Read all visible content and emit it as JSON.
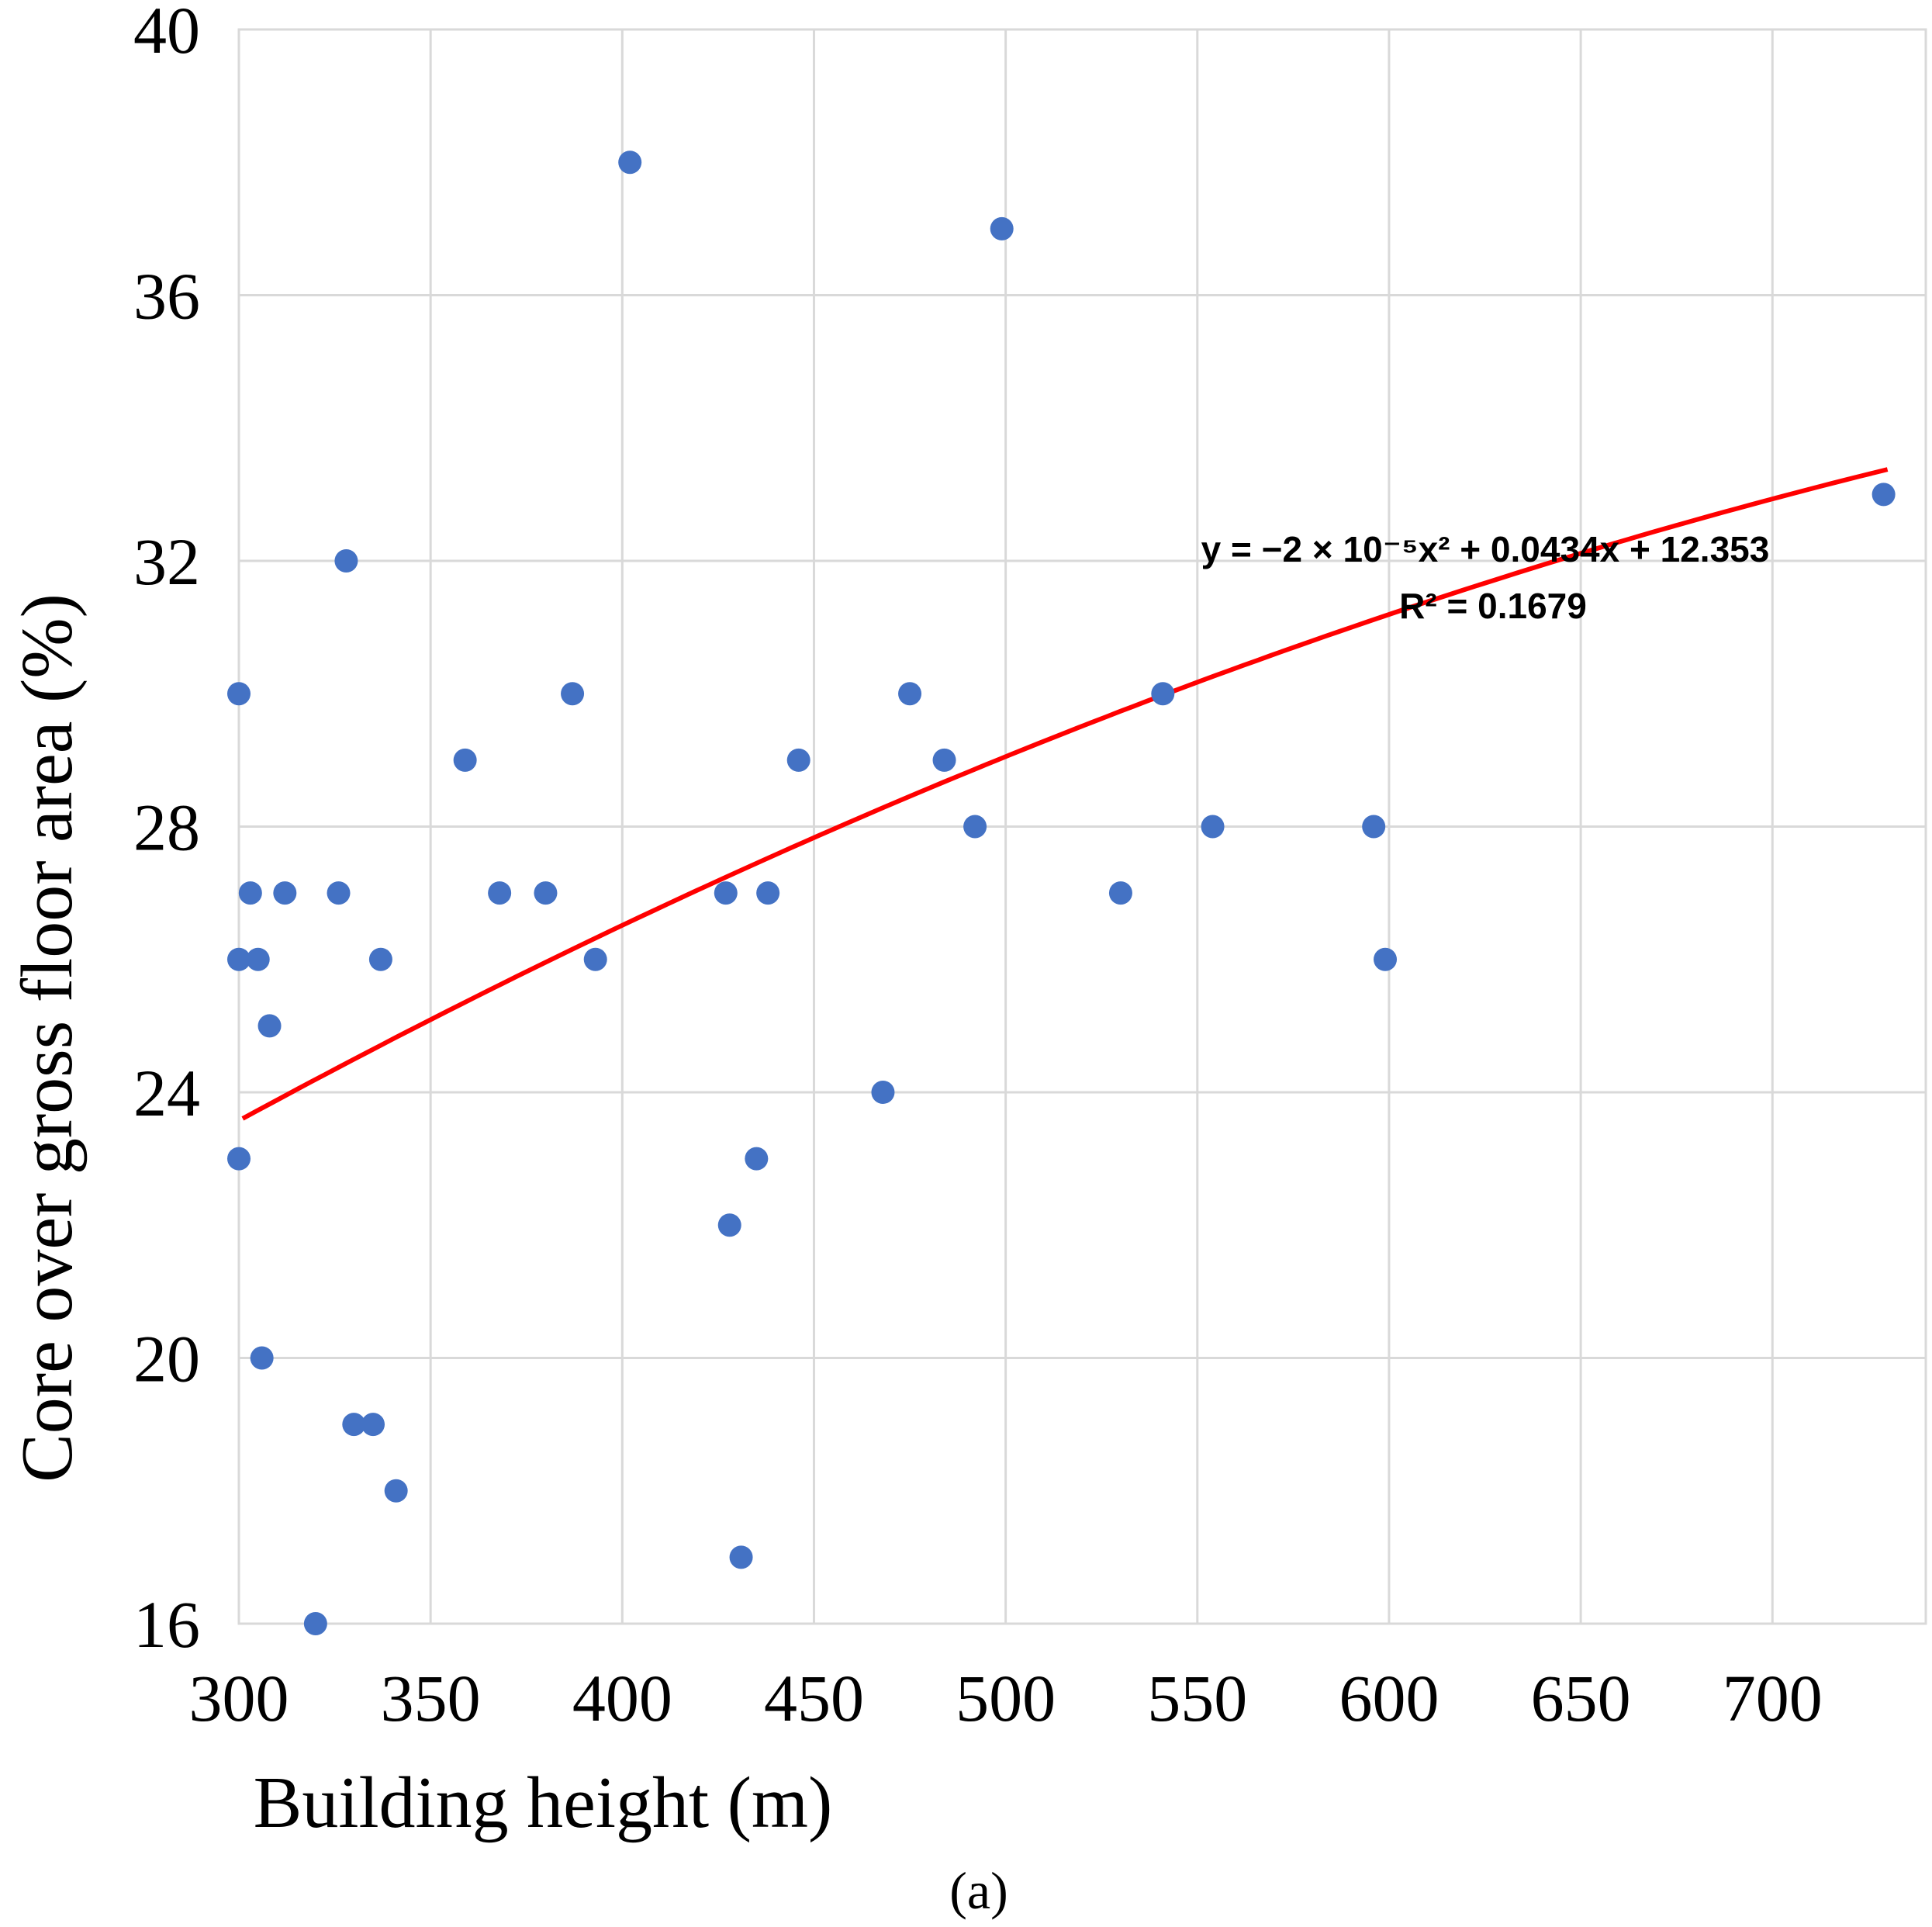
{
  "chart_data": {
    "type": "scatter",
    "title": "",
    "xlabel": "Building height (m)",
    "ylabel": "Core over gross floor area  (%)",
    "caption": "(a)",
    "xlim": [
      300,
      740
    ],
    "ylim": [
      16,
      40
    ],
    "xticks": [
      300,
      350,
      400,
      450,
      500,
      550,
      600,
      650,
      700
    ],
    "yticks": [
      16,
      20,
      24,
      28,
      32,
      36,
      40
    ],
    "grid": true,
    "point_color": "#4472C4",
    "trend_color": "#FF0000",
    "points": [
      {
        "x": 300,
        "y": 30
      },
      {
        "x": 300,
        "y": 26
      },
      {
        "x": 300,
        "y": 23
      },
      {
        "x": 303,
        "y": 27
      },
      {
        "x": 305,
        "y": 26
      },
      {
        "x": 306,
        "y": 20
      },
      {
        "x": 308,
        "y": 25
      },
      {
        "x": 312,
        "y": 27
      },
      {
        "x": 320,
        "y": 16
      },
      {
        "x": 326,
        "y": 27
      },
      {
        "x": 328,
        "y": 32
      },
      {
        "x": 330,
        "y": 19
      },
      {
        "x": 335,
        "y": 19
      },
      {
        "x": 337,
        "y": 26
      },
      {
        "x": 341,
        "y": 18
      },
      {
        "x": 359,
        "y": 29
      },
      {
        "x": 368,
        "y": 27
      },
      {
        "x": 380,
        "y": 27
      },
      {
        "x": 387,
        "y": 30
      },
      {
        "x": 393,
        "y": 26
      },
      {
        "x": 402,
        "y": 38
      },
      {
        "x": 427,
        "y": 27
      },
      {
        "x": 428,
        "y": 22
      },
      {
        "x": 431,
        "y": 17
      },
      {
        "x": 435,
        "y": 23
      },
      {
        "x": 438,
        "y": 27
      },
      {
        "x": 446,
        "y": 29
      },
      {
        "x": 468,
        "y": 24
      },
      {
        "x": 475,
        "y": 30
      },
      {
        "x": 484,
        "y": 29
      },
      {
        "x": 492,
        "y": 28
      },
      {
        "x": 499,
        "y": 37
      },
      {
        "x": 530,
        "y": 27
      },
      {
        "x": 541,
        "y": 30
      },
      {
        "x": 554,
        "y": 28
      },
      {
        "x": 596,
        "y": 28
      },
      {
        "x": 599,
        "y": 26
      },
      {
        "x": 729,
        "y": 33
      }
    ],
    "trendline": {
      "type": "polynomial",
      "coefficients": {
        "a": -2e-05,
        "b": 0.0434,
        "c": 12.353
      },
      "x_range": [
        301,
        730
      ],
      "equation": "y = −2 × 10⁻⁵x² + 0.0434x + 12.353",
      "r_squared": "R² = 0.1679"
    }
  }
}
